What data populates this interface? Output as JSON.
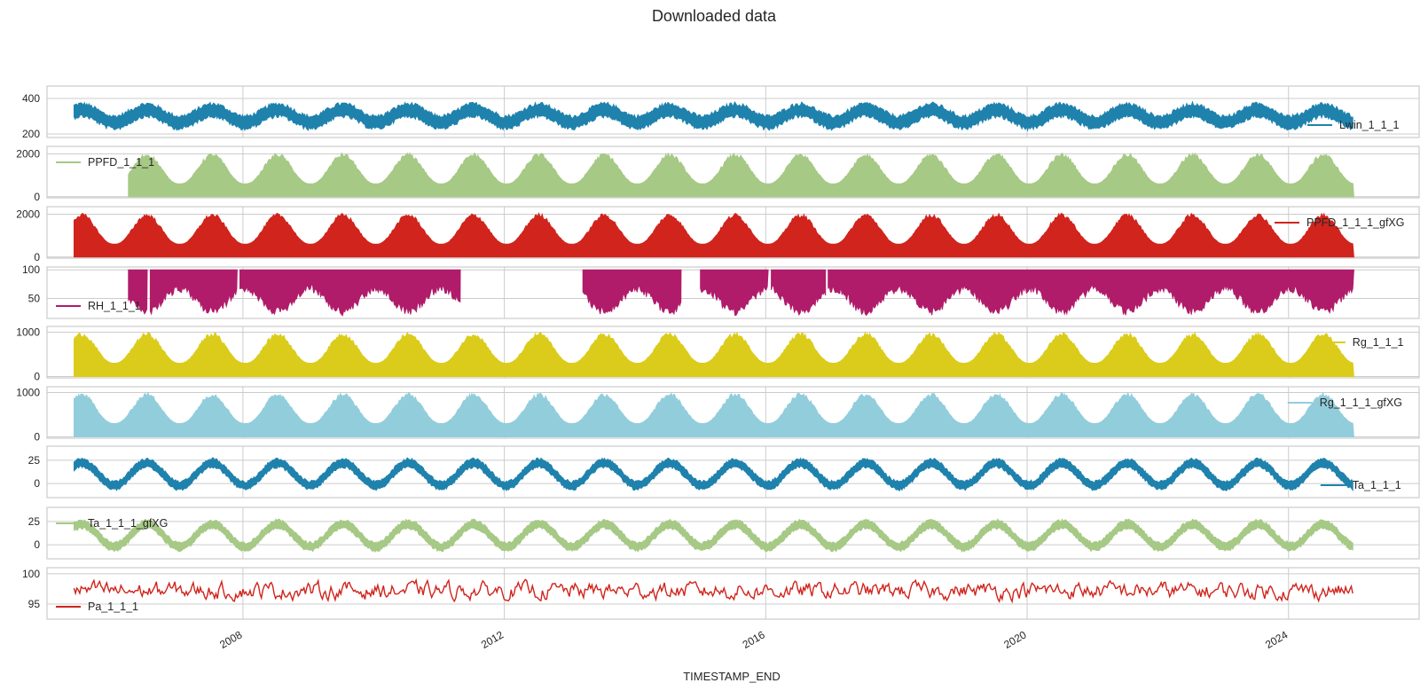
{
  "chart_data": {
    "type": "line",
    "title": "Downloaded data",
    "xlabel": "TIMESTAMP_END",
    "x_range": [
      "2005-01-01",
      "2025-12-31"
    ],
    "x_ticks": [
      "2008",
      "2012",
      "2016",
      "2020",
      "2024"
    ],
    "grid": true,
    "subplots": [
      {
        "name": "Lwin_1_1_1",
        "color": "#1f82ad",
        "start": "2005-06-01",
        "end": "2024-12-31",
        "ylim": [
          180,
          470
        ],
        "yticks": [
          200,
          400
        ],
        "kind": "band",
        "mean": 300,
        "amplitude": 35,
        "noise": 65,
        "legend": "lower-right"
      },
      {
        "name": "PPFD_1_1_1",
        "color": "#a6c985",
        "start": "2006-04-01",
        "end": "2024-12-31",
        "ylim": [
          -50,
          2350
        ],
        "yticks": [
          0,
          2000
        ],
        "kind": "solar",
        "peak": 2050,
        "floor": 600,
        "legend": "upper-left"
      },
      {
        "name": "PPFD_1_1_1_gfXG",
        "color": "#d0241c",
        "start": "2005-06-01",
        "end": "2024-12-31",
        "ylim": [
          -50,
          2350
        ],
        "yticks": [
          0,
          2000
        ],
        "kind": "solar",
        "peak": 2050,
        "floor": 600,
        "legend": "upper-right"
      },
      {
        "name": "RH_1_1_1",
        "color": "#b01c6a",
        "start": "2006-04-01",
        "end": "2024-12-31",
        "ylim": [
          15,
          105
        ],
        "yticks": [
          50,
          100
        ],
        "kind": "rh",
        "segments": [
          [
            "2006-04-01",
            "2006-07-15"
          ],
          [
            "2006-08-01",
            "2007-11-30"
          ],
          [
            "2007-12-15",
            "2011-04-30"
          ],
          [
            "2013-03-15",
            "2014-09-15"
          ],
          [
            "2015-01-01",
            "2016-01-15"
          ],
          [
            "2016-02-01",
            "2016-11-30"
          ],
          [
            "2016-12-15",
            "2024-12-31"
          ]
        ],
        "legend": "lower-left"
      },
      {
        "name": "Rg_1_1_1",
        "color": "#dbcc1b",
        "start": "2005-06-01",
        "end": "2024-12-31",
        "ylim": [
          -30,
          1130
        ],
        "yticks": [
          0,
          1000
        ],
        "kind": "solar",
        "peak": 1000,
        "floor": 300,
        "legend": "upper-right"
      },
      {
        "name": "Rg_1_1_1_gfXG",
        "color": "#92cddc",
        "start": "2005-06-01",
        "end": "2024-12-31",
        "ylim": [
          -30,
          1130
        ],
        "yticks": [
          0,
          1000
        ],
        "kind": "solar",
        "peak": 1000,
        "floor": 300,
        "legend": "upper-right"
      },
      {
        "name": "Ta_1_1_1",
        "color": "#1f82ad",
        "start": "2005-06-01",
        "end": "2024-12-31",
        "ylim": [
          -15,
          40
        ],
        "yticks": [
          0,
          25
        ],
        "kind": "band",
        "mean": 10,
        "amplitude": 12,
        "noise": 8,
        "legend": "lower-right"
      },
      {
        "name": "Ta_1_1_1_gfXG",
        "color": "#a6c985",
        "start": "2005-06-01",
        "end": "2024-12-31",
        "ylim": [
          -15,
          40
        ],
        "yticks": [
          0,
          25
        ],
        "kind": "band",
        "mean": 10,
        "amplitude": 12,
        "noise": 8,
        "legend": "upper-left"
      },
      {
        "name": "Pa_1_1_1",
        "color": "#d0241c",
        "start": "2005-06-01",
        "end": "2024-12-31",
        "ylim": [
          92.5,
          101
        ],
        "yticks": [
          95,
          100
        ],
        "kind": "line",
        "mean": 97.2,
        "noise": 1.3,
        "legend": "lower-left"
      }
    ]
  }
}
